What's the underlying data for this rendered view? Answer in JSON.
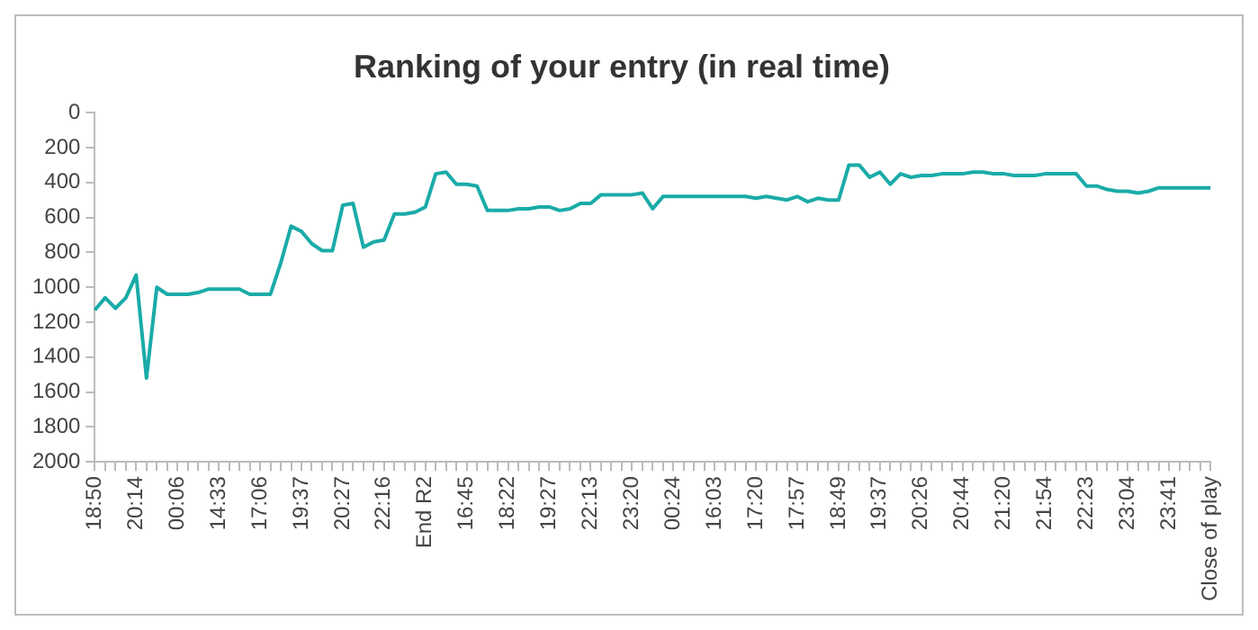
{
  "chart_data": {
    "type": "line",
    "title": "Ranking of your entry (in real time)",
    "categories": [
      "18:50",
      null,
      null,
      null,
      "20:14",
      null,
      null,
      null,
      "00:06",
      null,
      null,
      null,
      "14:33",
      null,
      null,
      null,
      "17:06",
      null,
      null,
      null,
      "19:37",
      null,
      null,
      null,
      "20:27",
      null,
      null,
      null,
      "22:16",
      null,
      null,
      null,
      "End R2",
      null,
      null,
      null,
      "16:45",
      null,
      null,
      null,
      "18:22",
      null,
      null,
      null,
      "19:27",
      null,
      null,
      null,
      "22:13",
      null,
      null,
      null,
      "23:20",
      null,
      null,
      null,
      "00:24",
      null,
      null,
      null,
      "16:03",
      null,
      null,
      null,
      "17:20",
      null,
      null,
      null,
      "17:57",
      null,
      null,
      null,
      "18:49",
      null,
      null,
      null,
      "19:37",
      null,
      null,
      null,
      "20:26",
      null,
      null,
      null,
      "20:44",
      null,
      null,
      null,
      "21:20",
      null,
      null,
      null,
      "21:54",
      null,
      null,
      null,
      "22:23",
      null,
      null,
      null,
      "23:04",
      null,
      null,
      null,
      "23:41",
      null,
      null,
      null,
      "Close of play"
    ],
    "series": [
      {
        "color": "#1aaba8",
        "values": [
          1130,
          1060,
          1120,
          1060,
          930,
          1520,
          1000,
          1040,
          1040,
          1040,
          1030,
          1010,
          1010,
          1010,
          1010,
          1040,
          1040,
          1040,
          860,
          650,
          680,
          750,
          790,
          790,
          530,
          520,
          770,
          740,
          730,
          580,
          580,
          570,
          540,
          350,
          340,
          410,
          410,
          420,
          560,
          560,
          560,
          550,
          550,
          540,
          540,
          560,
          550,
          520,
          520,
          470,
          470,
          470,
          470,
          460,
          550,
          480,
          480,
          480,
          480,
          480,
          480,
          480,
          480,
          480,
          490,
          480,
          490,
          500,
          480,
          510,
          490,
          500,
          500,
          300,
          300,
          370,
          340,
          410,
          350,
          370,
          360,
          360,
          350,
          350,
          350,
          340,
          340,
          350,
          350,
          360,
          360,
          360,
          350,
          350,
          350,
          350,
          420,
          420,
          440,
          450,
          450,
          460,
          450,
          430,
          430,
          430,
          430,
          430,
          430
        ]
      }
    ],
    "ylim": [
      2000,
      0
    ],
    "yticks": [
      0,
      200,
      400,
      600,
      800,
      1000,
      1200,
      1400,
      1600,
      1800,
      2000
    ],
    "grid": false,
    "legend": false,
    "marker": "none",
    "line_style": "solid"
  }
}
